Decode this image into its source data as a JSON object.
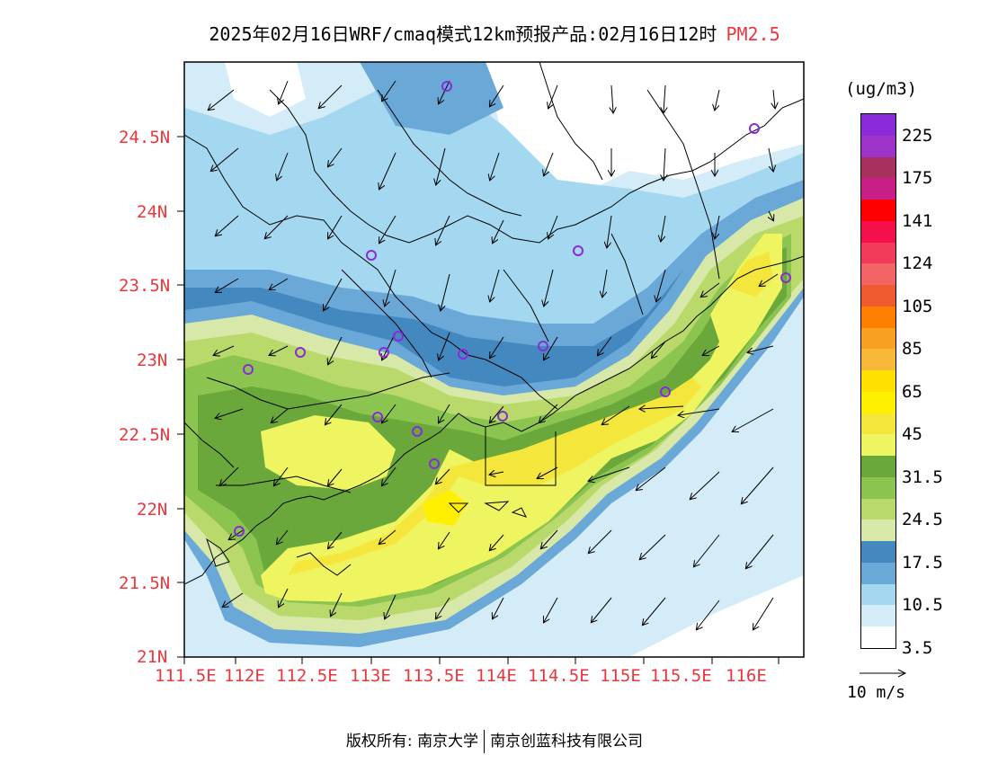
{
  "title": {
    "main": "2025年02月16日WRF/cmaq模式12km预报产品:02月16日12时",
    "pollutant": "PM2.5"
  },
  "colorbar": {
    "unit": "(ug/m3)",
    "labels": [
      "225",
      "175",
      "141",
      "124",
      "105",
      "85",
      "65",
      "45",
      "31.5",
      "24.5",
      "17.5",
      "10.5",
      "3.5"
    ],
    "colors_top_to_bottom": [
      "#8a2ad8",
      "#9e33c9",
      "#a8305f",
      "#c81e86",
      "#ff0000",
      "#f5104b",
      "#f33a5a",
      "#f36464",
      "#ef5b2e",
      "#ff8000",
      "#f8a020",
      "#f8b838",
      "#ffe000",
      "#fff000",
      "#f5e63c",
      "#eef560",
      "#6aa83c",
      "#8cc450",
      "#b9d96a",
      "#d8e8a8",
      "#4488c0",
      "#6aa8d8",
      "#a4d8f0",
      "#d4ecf8",
      "#ffffff"
    ]
  },
  "wind_reference": {
    "label": "10 m/s"
  },
  "axes": {
    "x_ticks": [
      "111.5E",
      "112E",
      "112.5E",
      "113E",
      "113.5E",
      "114E",
      "114.5E",
      "115E",
      "115.5E",
      "116E"
    ],
    "y_ticks": [
      "24.5N",
      "24N",
      "23.5N",
      "23N",
      "22.5N",
      "22N",
      "21.5N",
      "21N"
    ]
  },
  "stations_count_visible": 17,
  "colors": {
    "tick_text": "#e8383d",
    "station": "#8a2ad8",
    "border": "#000000"
  },
  "copyright": {
    "owner_prefix": "版权所有:",
    "org1": "南京大学",
    "org2": "南京创蓝科技有限公司"
  }
}
